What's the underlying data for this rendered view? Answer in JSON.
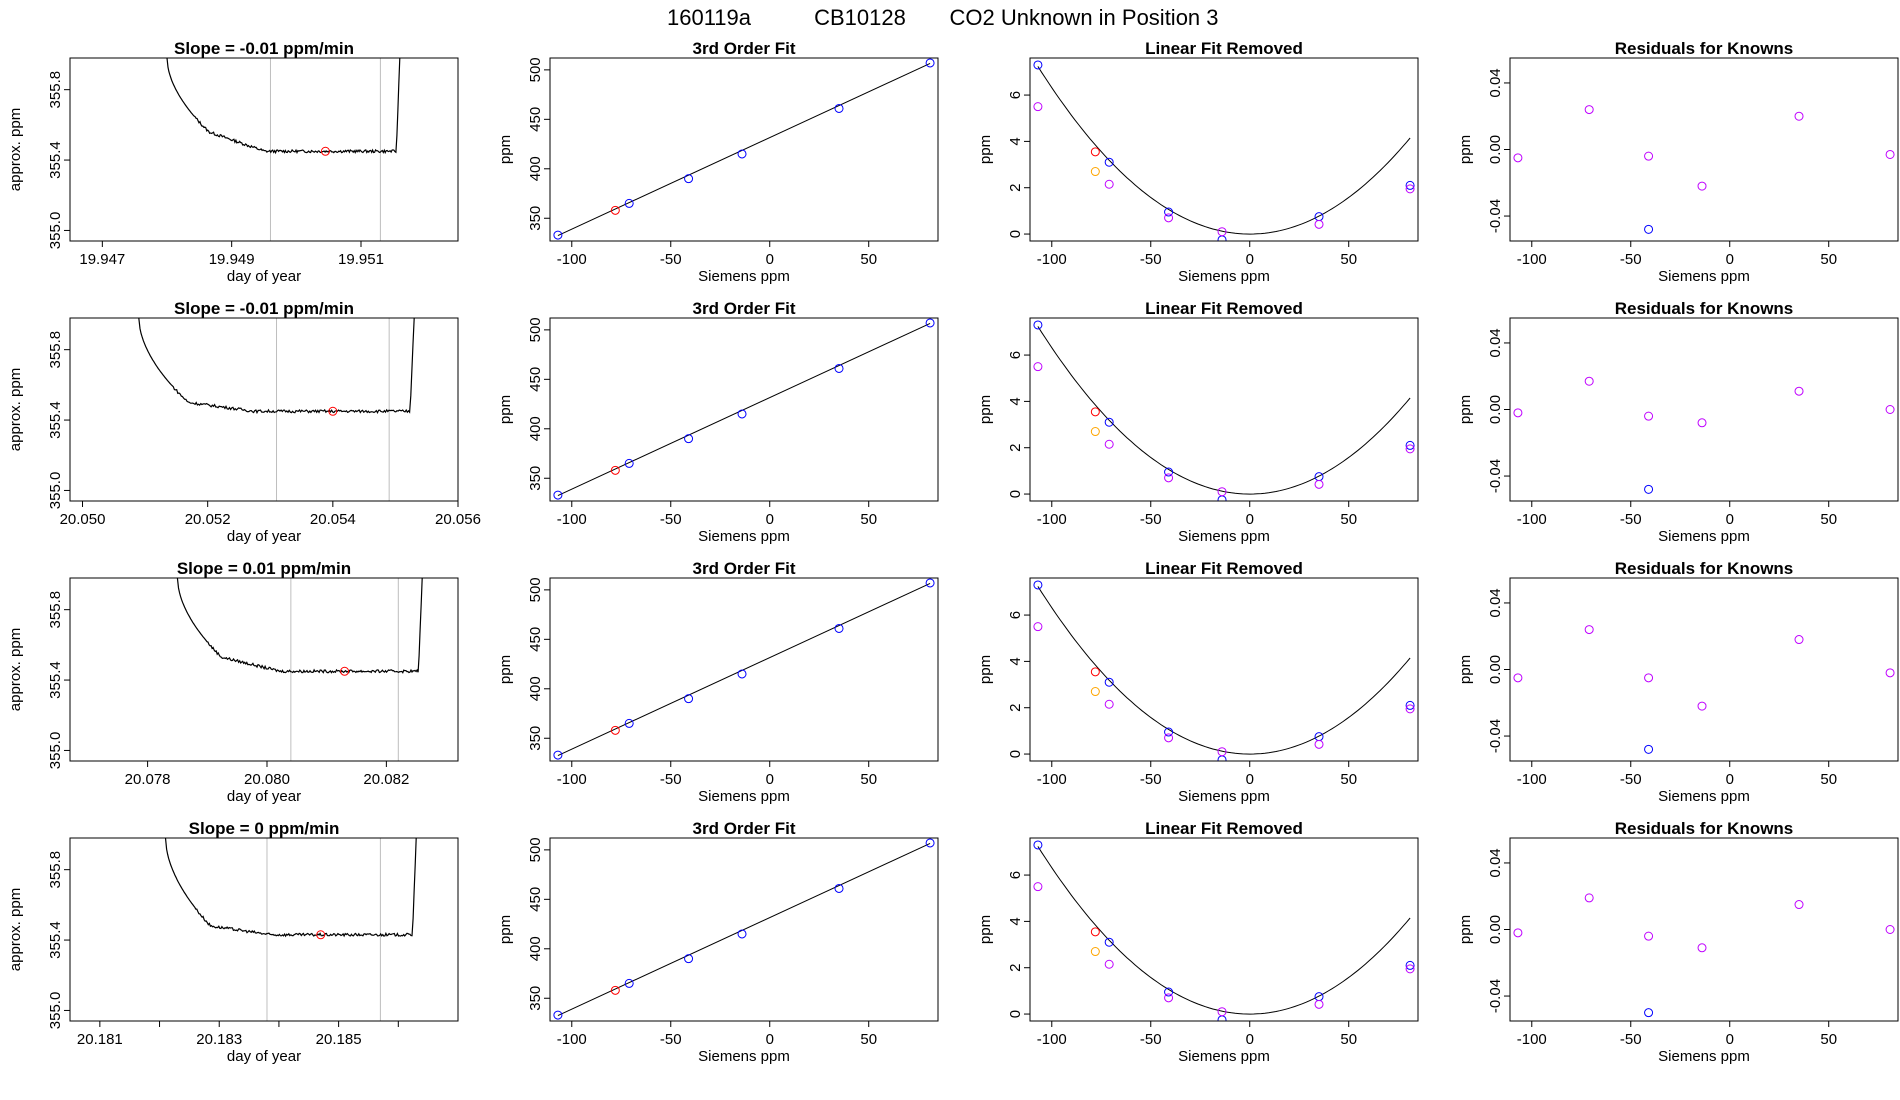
{
  "figure": {
    "title_parts": [
      "160119a",
      "CB10128",
      "CO2 Unknown in Position  3"
    ],
    "colors": {
      "standards": "#0000ff",
      "unknown": "#ff0000",
      "residual": "#bf00ff",
      "orange": "#ffa500",
      "line": "#000000",
      "gridline": "#bebebe"
    }
  },
  "chart_data": [
    {
      "type": "line",
      "row": 0,
      "col": 0,
      "title": "Slope =  -0.01  ppm/min",
      "xlabel": "day of year",
      "ylabel": "approx. ppm",
      "xlim": [
        19.9465,
        19.9525
      ],
      "ylim": [
        354.94,
        355.98
      ],
      "xticks": [
        19.947,
        19.949,
        19.951
      ],
      "xtick_labels": [
        "19.947",
        "19.949",
        "19.951"
      ],
      "yticks": [
        355.0,
        355.4,
        355.8
      ],
      "ytick_labels": [
        "355.0",
        "355.4",
        "355.8"
      ],
      "x_start": 19.948,
      "x_end": 19.9516,
      "vlines": [
        19.9496,
        19.9513
      ],
      "marker": {
        "x": 19.95045,
        "y": 355.45
      },
      "trace": {
        "edge": 355.98,
        "dip": 355.56,
        "plateau": 355.45,
        "noise": 0.008
      }
    },
    {
      "type": "line",
      "row": 1,
      "col": 0,
      "title": "Slope =  -0.01  ppm/min",
      "xlabel": "day of year",
      "ylabel": "approx. ppm",
      "xlim": [
        20.0498,
        20.056
      ],
      "ylim": [
        354.94,
        355.98
      ],
      "xticks": [
        20.05,
        20.052,
        20.054,
        20.056
      ],
      "xtick_labels": [
        "20.050",
        "20.052",
        "20.054",
        "20.056"
      ],
      "yticks": [
        355.0,
        355.4,
        355.8
      ],
      "ytick_labels": [
        "355.0",
        "355.4",
        "355.8"
      ],
      "x_start": 20.0509,
      "x_end": 20.0553,
      "vlines": [
        20.0531,
        20.0549
      ],
      "marker": {
        "x": 20.054,
        "y": 355.45
      },
      "trace": {
        "edge": 355.98,
        "dip": 355.5,
        "plateau": 355.45,
        "noise": 0.008
      }
    },
    {
      "type": "line",
      "row": 2,
      "col": 0,
      "title": "Slope =  0.01  ppm/min",
      "xlabel": "day of year",
      "ylabel": "approx. ppm",
      "xlim": [
        20.0767,
        20.0832
      ],
      "ylim": [
        354.94,
        355.98
      ],
      "xticks": [
        20.078,
        20.08,
        20.082
      ],
      "xtick_labels": [
        "20.078",
        "20.080",
        "20.082"
      ],
      "yticks": [
        355.0,
        355.4,
        355.8
      ],
      "ytick_labels": [
        "355.0",
        "355.4",
        "355.8"
      ],
      "x_start": 20.0785,
      "x_end": 20.0826,
      "vlines": [
        20.0804,
        20.0822
      ],
      "marker": {
        "x": 20.0813,
        "y": 355.45
      },
      "trace": {
        "edge": 355.98,
        "dip": 355.53,
        "plateau": 355.45,
        "noise": 0.008
      }
    },
    {
      "type": "line",
      "row": 3,
      "col": 0,
      "title": "Slope =  0  ppm/min",
      "xlabel": "day of year",
      "ylabel": "approx. ppm",
      "xlim": [
        20.1805,
        20.187
      ],
      "ylim": [
        354.94,
        355.98
      ],
      "xticks": [
        20.181,
        20.182,
        20.183,
        20.184,
        20.185,
        20.186
      ],
      "xtick_labels": [
        "20.181",
        "",
        "20.183",
        "",
        "20.185",
        ""
      ],
      "yticks": [
        355.0,
        355.4,
        355.8
      ],
      "ytick_labels": [
        "355.0",
        "355.4",
        "355.8"
      ],
      "x_start": 20.1821,
      "x_end": 20.1863,
      "vlines": [
        20.1838,
        20.1857
      ],
      "marker": {
        "x": 20.1847,
        "y": 355.43
      },
      "trace": {
        "edge": 355.98,
        "dip": 355.48,
        "plateau": 355.43,
        "noise": 0.008
      }
    },
    {
      "type": "scatter",
      "col": 1,
      "repeat_rows": [
        0,
        1,
        2,
        3
      ],
      "title": "3rd Order Fit",
      "xlabel": "Siemens ppm",
      "ylabel": "ppm",
      "xlim": [
        -111,
        85
      ],
      "ylim": [
        327,
        512
      ],
      "xticks": [
        -100,
        -50,
        0,
        50
      ],
      "xtick_labels": [
        "-100",
        "-50",
        "0",
        "50"
      ],
      "yticks": [
        350,
        400,
        450,
        500
      ],
      "ytick_labels": [
        "350",
        "400",
        "450",
        "500"
      ],
      "fit_line": {
        "x": [
          -107,
          81
        ],
        "y": [
          332.5,
          506.5
        ]
      },
      "series": [
        {
          "name": "standards",
          "color": "#0000ff",
          "x": [
            -107,
            -71,
            -41,
            -14,
            35,
            81
          ],
          "y": [
            333,
            365,
            390,
            415,
            461,
            507
          ]
        },
        {
          "name": "unknown",
          "color": "#ff0000",
          "x": [
            -78
          ],
          "y": [
            358
          ]
        }
      ]
    },
    {
      "type": "scatter",
      "col": 2,
      "repeat_rows": [
        0,
        1,
        2,
        3
      ],
      "title": "Linear Fit Removed",
      "xlabel": "Siemens ppm",
      "ylabel": "ppm",
      "xlim": [
        -111,
        85
      ],
      "ylim": [
        -0.3,
        7.6
      ],
      "xticks": [
        -100,
        -50,
        0,
        50
      ],
      "xtick_labels": [
        "-100",
        "-50",
        "0",
        "50"
      ],
      "yticks": [
        0,
        2,
        4,
        6
      ],
      "ytick_labels": [
        "0",
        "2",
        "4",
        "6"
      ],
      "curve": {
        "a": 0.000632,
        "b": 0.0,
        "c": 0.0,
        "x_range": [
          -107,
          81
        ]
      },
      "series": [
        {
          "name": "standards",
          "color": "#0000ff",
          "x": [
            -107,
            -71,
            -41,
            -14,
            35,
            81
          ],
          "y": [
            7.3,
            3.1,
            0.95,
            -0.25,
            0.75,
            2.1
          ]
        },
        {
          "name": "residual",
          "color": "#bf00ff",
          "x": [
            -107,
            -71,
            -41,
            -14,
            35,
            81
          ],
          "y": [
            5.5,
            2.15,
            0.7,
            0.1,
            0.42,
            1.95
          ]
        },
        {
          "name": "unknown",
          "color": "#ff0000",
          "x": [
            -78
          ],
          "y": [
            3.55
          ]
        },
        {
          "name": "orange",
          "color": "#ffa500",
          "x": [
            -78
          ],
          "y": [
            2.7
          ]
        }
      ]
    },
    {
      "type": "scatter",
      "col": 3,
      "row": 0,
      "title": "Residuals for Knowns",
      "xlabel": "Siemens ppm",
      "ylabel": "ppm",
      "xlim": [
        -111,
        85
      ],
      "ylim": [
        -0.055,
        0.055
      ],
      "xticks": [
        -100,
        -50,
        0,
        50
      ],
      "xtick_labels": [
        "-100",
        "-50",
        "0",
        "50"
      ],
      "yticks": [
        -0.04,
        0.0,
        0.04
      ],
      "ytick_labels": [
        "-0.04",
        "0.00",
        "0.04"
      ],
      "series": [
        {
          "name": "residual",
          "color": "#bf00ff",
          "x": [
            -107,
            -71,
            -41,
            -14,
            35,
            81
          ],
          "y": [
            -0.005,
            0.024,
            -0.004,
            -0.022,
            0.02,
            -0.003
          ]
        },
        {
          "name": "standards",
          "color": "#0000ff",
          "x": [
            -41
          ],
          "y": [
            -0.048
          ]
        }
      ]
    },
    {
      "type": "scatter",
      "col": 3,
      "row": 1,
      "title": "Residuals for Knowns",
      "xlabel": "Siemens ppm",
      "ylabel": "ppm",
      "xlim": [
        -111,
        85
      ],
      "ylim": [
        -0.055,
        0.055
      ],
      "xticks": [
        -100,
        -50,
        0,
        50
      ],
      "xtick_labels": [
        "-100",
        "-50",
        "0",
        "50"
      ],
      "yticks": [
        -0.04,
        0.0,
        0.04
      ],
      "ytick_labels": [
        "-0.04",
        "0.00",
        "0.04"
      ],
      "series": [
        {
          "name": "residual",
          "color": "#bf00ff",
          "x": [
            -107,
            -71,
            -41,
            -14,
            35,
            81
          ],
          "y": [
            -0.002,
            0.017,
            -0.004,
            -0.008,
            0.011,
            0.0
          ]
        },
        {
          "name": "standards",
          "color": "#0000ff",
          "x": [
            -41
          ],
          "y": [
            -0.048
          ]
        }
      ]
    },
    {
      "type": "scatter",
      "col": 3,
      "row": 2,
      "title": "Residuals for Knowns",
      "xlabel": "Siemens ppm",
      "ylabel": "ppm",
      "xlim": [
        -111,
        85
      ],
      "ylim": [
        -0.055,
        0.055
      ],
      "xticks": [
        -100,
        -50,
        0,
        50
      ],
      "xtick_labels": [
        "-100",
        "-50",
        "0",
        "50"
      ],
      "yticks": [
        -0.04,
        0.0,
        0.04
      ],
      "ytick_labels": [
        "-0.04",
        "0.00",
        "0.04"
      ],
      "series": [
        {
          "name": "residual",
          "color": "#bf00ff",
          "x": [
            -107,
            -71,
            -41,
            -14,
            35,
            81
          ],
          "y": [
            -0.005,
            0.024,
            -0.005,
            -0.022,
            0.018,
            -0.002
          ]
        },
        {
          "name": "standards",
          "color": "#0000ff",
          "x": [
            -41
          ],
          "y": [
            -0.048
          ]
        }
      ]
    },
    {
      "type": "scatter",
      "col": 3,
      "row": 3,
      "title": "Residuals for Knowns",
      "xlabel": "Siemens ppm",
      "ylabel": "ppm",
      "xlim": [
        -111,
        85
      ],
      "ylim": [
        -0.055,
        0.055
      ],
      "xticks": [
        -100,
        -50,
        0,
        50
      ],
      "xtick_labels": [
        "-100",
        "-50",
        "0",
        "50"
      ],
      "yticks": [
        -0.04,
        0.0,
        0.04
      ],
      "ytick_labels": [
        "-0.04",
        "0.00",
        "0.04"
      ],
      "series": [
        {
          "name": "residual",
          "color": "#bf00ff",
          "x": [
            -107,
            -71,
            -41,
            -14,
            35,
            81
          ],
          "y": [
            -0.002,
            0.019,
            -0.004,
            -0.011,
            0.015,
            0.0
          ]
        },
        {
          "name": "standards",
          "color": "#0000ff",
          "x": [
            -41
          ],
          "y": [
            -0.05
          ]
        }
      ]
    }
  ]
}
